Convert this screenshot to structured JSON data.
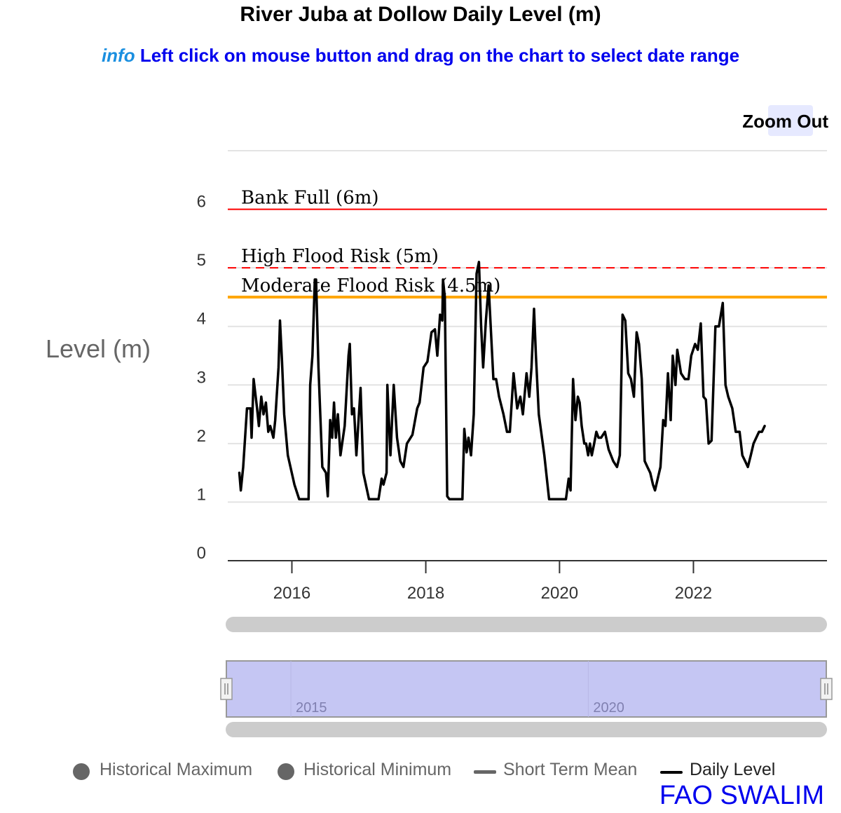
{
  "header": {
    "title": "River Juba at Dollow Daily Level (m)",
    "info_tag": "info",
    "info_text": "Left click on mouse button and drag on the chart to select date range"
  },
  "toolbar": {
    "zoom_out_label": "Zoom Out"
  },
  "credit": "FAO SWALIM",
  "colors": {
    "bank_full": "#ff0000",
    "high_flood": "#ff0000",
    "moderate_flood": "#ffa500",
    "daily_level": "#000000",
    "navigator_fill": "#c5c6f3",
    "scrollbar": "#cccccc"
  },
  "navigator": {
    "labels": [
      "2015",
      "2020"
    ]
  },
  "legend": [
    {
      "label": "Historical Maximum",
      "symbol": "dot",
      "active": false
    },
    {
      "label": "Historical Minimum",
      "symbol": "dot",
      "active": false
    },
    {
      "label": "Short Term Mean",
      "symbol": "dash",
      "active": false
    },
    {
      "label": "Daily Level",
      "symbol": "line",
      "active": true
    }
  ],
  "chart_data": {
    "type": "line",
    "ylabel": "Level (m)",
    "ylim": [
      0,
      7
    ],
    "yticks": [
      0,
      1,
      2,
      3,
      4,
      5,
      6
    ],
    "xlim": [
      "2015-01-16",
      "2023-12-31"
    ],
    "xticks": [
      "2016",
      "2018",
      "2020",
      "2022"
    ],
    "grid": true,
    "thresholds": [
      {
        "label": "Bank Full (6m)",
        "value": 6,
        "style": "solid",
        "color": "#ff0000"
      },
      {
        "label": "High Flood Risk (5m)",
        "value": 5,
        "style": "dashed",
        "color": "#ff0000"
      },
      {
        "label": "Moderate Flood Risk (4.5m)",
        "value": 4.5,
        "style": "solid",
        "color": "#ffa500"
      }
    ],
    "series": [
      {
        "name": "Daily Level",
        "color": "#000000",
        "points": [
          [
            "2015-03-20",
            1.5
          ],
          [
            "2015-03-28",
            1.2
          ],
          [
            "2015-04-10",
            1.6
          ],
          [
            "2015-05-01",
            2.6
          ],
          [
            "2015-05-20",
            2.6
          ],
          [
            "2015-05-26",
            2.1
          ],
          [
            "2015-06-06",
            3.1
          ],
          [
            "2015-06-25",
            2.6
          ],
          [
            "2015-07-05",
            2.3
          ],
          [
            "2015-07-18",
            2.8
          ],
          [
            "2015-07-30",
            2.5
          ],
          [
            "2015-08-12",
            2.7
          ],
          [
            "2015-08-25",
            2.2
          ],
          [
            "2015-09-05",
            2.3
          ],
          [
            "2015-09-22",
            2.1
          ],
          [
            "2015-10-02",
            2.4
          ],
          [
            "2015-10-20",
            3.3
          ],
          [
            "2015-10-28",
            4.1
          ],
          [
            "2015-11-08",
            3.4
          ],
          [
            "2015-11-20",
            2.5
          ],
          [
            "2015-12-10",
            1.8
          ],
          [
            "2016-01-15",
            1.3
          ],
          [
            "2016-02-10",
            1.05
          ],
          [
            "2016-04-01",
            1.05
          ],
          [
            "2016-04-10",
            3.0
          ],
          [
            "2016-04-22",
            3.5
          ],
          [
            "2016-05-05",
            4.8
          ],
          [
            "2016-05-12",
            4.8
          ],
          [
            "2016-05-25",
            3.3
          ],
          [
            "2016-06-15",
            1.6
          ],
          [
            "2016-07-05",
            1.5
          ],
          [
            "2016-07-15",
            1.1
          ],
          [
            "2016-07-28",
            2.4
          ],
          [
            "2016-08-08",
            2.1
          ],
          [
            "2016-08-18",
            2.7
          ],
          [
            "2016-08-28",
            2.1
          ],
          [
            "2016-09-08",
            2.5
          ],
          [
            "2016-09-22",
            1.8
          ],
          [
            "2016-10-15",
            2.3
          ],
          [
            "2016-11-05",
            3.5
          ],
          [
            "2016-11-12",
            3.7
          ],
          [
            "2016-11-24",
            2.5
          ],
          [
            "2016-12-05",
            2.6
          ],
          [
            "2016-12-18",
            1.8
          ],
          [
            "2017-01-10",
            2.95
          ],
          [
            "2017-01-25",
            1.5
          ],
          [
            "2017-02-25",
            1.05
          ],
          [
            "2017-04-18",
            1.05
          ],
          [
            "2017-05-05",
            1.4
          ],
          [
            "2017-05-15",
            1.3
          ],
          [
            "2017-06-01",
            1.5
          ],
          [
            "2017-06-05",
            3.0
          ],
          [
            "2017-06-22",
            1.8
          ],
          [
            "2017-07-10",
            3.0
          ],
          [
            "2017-07-28",
            2.1
          ],
          [
            "2017-08-15",
            1.7
          ],
          [
            "2017-09-01",
            1.6
          ],
          [
            "2017-09-20",
            2.0
          ],
          [
            "2017-10-20",
            2.15
          ],
          [
            "2017-11-15",
            2.6
          ],
          [
            "2017-11-28",
            2.7
          ],
          [
            "2017-12-20",
            3.3
          ],
          [
            "2018-01-10",
            3.4
          ],
          [
            "2018-02-01",
            3.9
          ],
          [
            "2018-02-20",
            3.95
          ],
          [
            "2018-03-05",
            3.5
          ],
          [
            "2018-03-20",
            4.2
          ],
          [
            "2018-04-01",
            4.1
          ],
          [
            "2018-04-05",
            4.8
          ],
          [
            "2018-04-15",
            4.5
          ],
          [
            "2018-04-28",
            1.1
          ],
          [
            "2018-05-10",
            1.05
          ],
          [
            "2018-07-20",
            1.05
          ],
          [
            "2018-07-30",
            2.25
          ],
          [
            "2018-08-12",
            1.85
          ],
          [
            "2018-08-22",
            2.1
          ],
          [
            "2018-09-05",
            1.8
          ],
          [
            "2018-09-20",
            2.5
          ],
          [
            "2018-10-05",
            4.9
          ],
          [
            "2018-10-18",
            5.1
          ],
          [
            "2018-10-30",
            4.0
          ],
          [
            "2018-11-10",
            3.3
          ],
          [
            "2018-11-25",
            4.1
          ],
          [
            "2018-12-10",
            4.7
          ],
          [
            "2019-01-05",
            3.1
          ],
          [
            "2019-01-20",
            3.1
          ],
          [
            "2019-02-05",
            2.8
          ],
          [
            "2019-03-01",
            2.5
          ],
          [
            "2019-03-20",
            2.2
          ],
          [
            "2019-04-05",
            2.2
          ],
          [
            "2019-04-25",
            3.2
          ],
          [
            "2019-05-15",
            2.6
          ],
          [
            "2019-06-01",
            2.8
          ],
          [
            "2019-06-15",
            2.5
          ],
          [
            "2019-07-05",
            3.2
          ],
          [
            "2019-07-20",
            2.8
          ],
          [
            "2019-08-01",
            3.3
          ],
          [
            "2019-08-15",
            4.3
          ],
          [
            "2019-08-25",
            3.5
          ],
          [
            "2019-09-10",
            2.5
          ],
          [
            "2019-10-10",
            1.8
          ],
          [
            "2019-11-05",
            1.05
          ],
          [
            "2020-01-10",
            1.05
          ],
          [
            "2020-02-05",
            1.05
          ],
          [
            "2020-02-20",
            1.4
          ],
          [
            "2020-03-01",
            1.2
          ],
          [
            "2020-03-15",
            3.1
          ],
          [
            "2020-03-28",
            2.4
          ],
          [
            "2020-04-10",
            2.8
          ],
          [
            "2020-04-20",
            2.7
          ],
          [
            "2020-05-01",
            2.3
          ],
          [
            "2020-05-15",
            2.0
          ],
          [
            "2020-05-25",
            2.0
          ],
          [
            "2020-06-05",
            1.8
          ],
          [
            "2020-06-15",
            2.0
          ],
          [
            "2020-06-25",
            1.8
          ],
          [
            "2020-07-08",
            2.0
          ],
          [
            "2020-07-20",
            2.2
          ],
          [
            "2020-08-01",
            2.1
          ],
          [
            "2020-08-15",
            2.1
          ],
          [
            "2020-09-05",
            2.2
          ],
          [
            "2020-09-25",
            1.9
          ],
          [
            "2020-10-20",
            1.7
          ],
          [
            "2020-11-10",
            1.6
          ],
          [
            "2020-11-25",
            1.8
          ],
          [
            "2020-12-10",
            4.2
          ],
          [
            "2020-12-25",
            4.1
          ],
          [
            "2021-01-10",
            3.2
          ],
          [
            "2021-01-25",
            3.1
          ],
          [
            "2021-02-10",
            2.8
          ],
          [
            "2021-02-25",
            3.9
          ],
          [
            "2021-03-10",
            3.7
          ],
          [
            "2021-03-25",
            3.1
          ],
          [
            "2021-04-10",
            1.7
          ],
          [
            "2021-04-25",
            1.6
          ],
          [
            "2021-05-10",
            1.5
          ],
          [
            "2021-05-25",
            1.3
          ],
          [
            "2021-06-05",
            1.2
          ],
          [
            "2021-06-20",
            1.4
          ],
          [
            "2021-07-05",
            1.6
          ],
          [
            "2021-07-20",
            2.4
          ],
          [
            "2021-08-01",
            2.3
          ],
          [
            "2021-08-15",
            3.2
          ],
          [
            "2021-08-30",
            2.4
          ],
          [
            "2021-09-10",
            3.5
          ],
          [
            "2021-09-25",
            3.0
          ],
          [
            "2021-10-05",
            3.6
          ],
          [
            "2021-10-25",
            3.2
          ],
          [
            "2021-11-15",
            3.1
          ],
          [
            "2021-12-05",
            3.1
          ],
          [
            "2021-12-20",
            3.5
          ],
          [
            "2022-01-10",
            3.7
          ],
          [
            "2022-01-25",
            3.6
          ],
          [
            "2022-02-10",
            4.05
          ],
          [
            "2022-02-25",
            2.8
          ],
          [
            "2022-03-10",
            2.75
          ],
          [
            "2022-03-25",
            2.0
          ],
          [
            "2022-04-10",
            2.05
          ],
          [
            "2022-05-01",
            4.0
          ],
          [
            "2022-05-20",
            4.0
          ],
          [
            "2022-06-10",
            4.4
          ],
          [
            "2022-06-25",
            3.0
          ],
          [
            "2022-07-10",
            2.8
          ],
          [
            "2022-08-01",
            2.6
          ],
          [
            "2022-08-20",
            2.2
          ],
          [
            "2022-09-10",
            2.2
          ],
          [
            "2022-09-25",
            1.8
          ],
          [
            "2022-10-10",
            1.7
          ],
          [
            "2022-10-25",
            1.6
          ],
          [
            "2022-11-10",
            1.8
          ],
          [
            "2022-11-25",
            2.0
          ],
          [
            "2022-12-10",
            2.1
          ],
          [
            "2022-12-25",
            2.2
          ],
          [
            "2023-01-10",
            2.2
          ],
          [
            "2023-01-25",
            2.3
          ]
        ]
      }
    ]
  }
}
